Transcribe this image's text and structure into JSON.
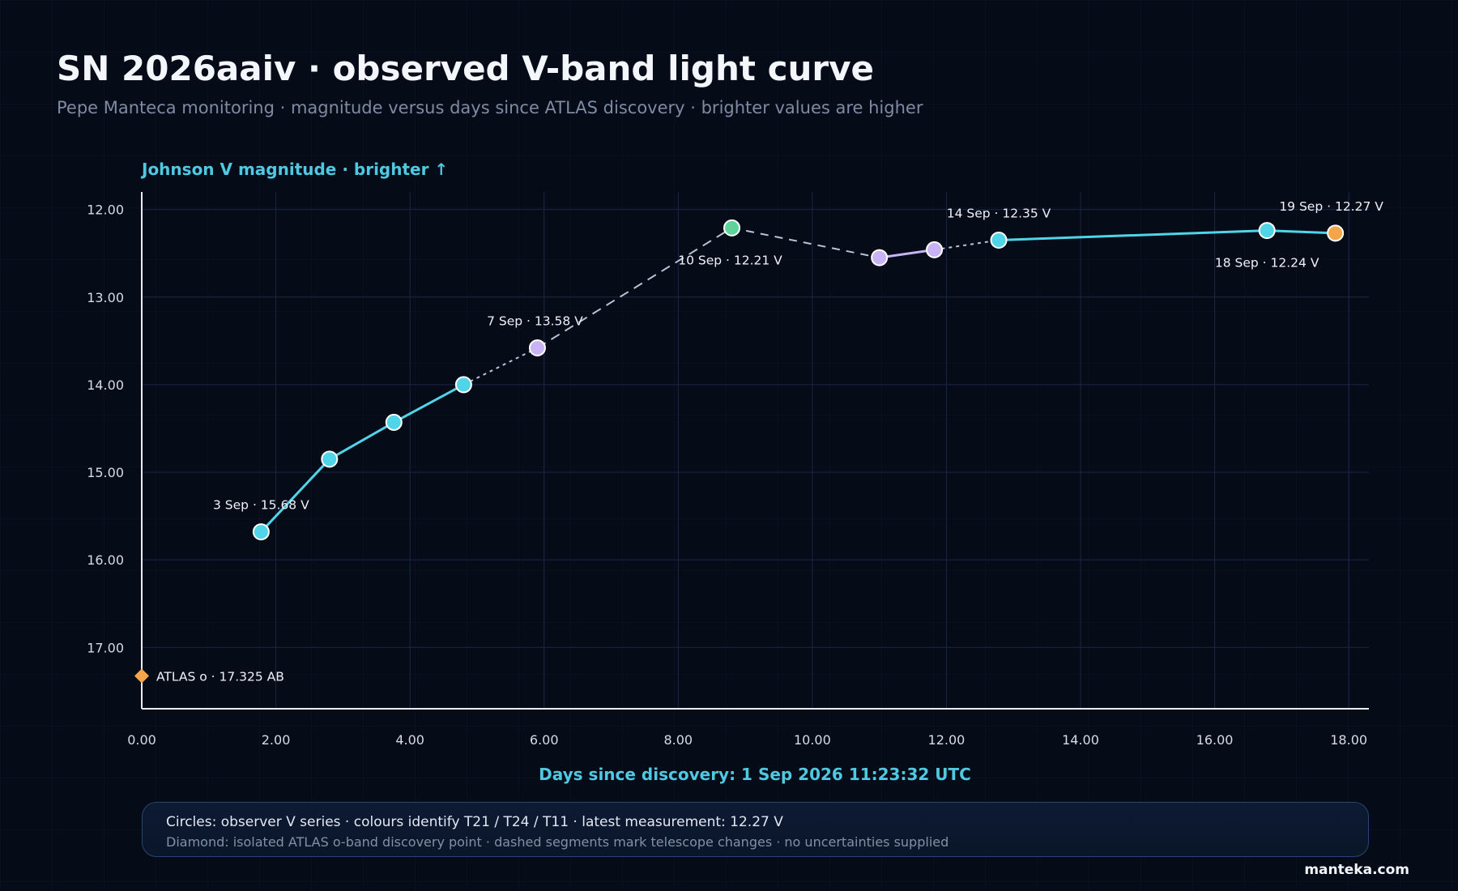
{
  "header": {
    "title": "SN 2026aaiv · observed V-band light curve",
    "subtitle": "Pepe Manteca monitoring · magnitude versus days since ATLAS discovery · brighter values are higher"
  },
  "chart_data": {
    "type": "scatter",
    "xlabel": "Days since discovery: 1 Sep 2026 11:23:32 UTC",
    "ylabel": "Johnson V magnitude · brighter ↑",
    "xlim": [
      0,
      18.3
    ],
    "ylim": [
      17.7,
      11.8
    ],
    "y_inverted": true,
    "grid": true,
    "x_ticks": [
      "0.00",
      "2.00",
      "4.00",
      "6.00",
      "8.00",
      "10.00",
      "12.00",
      "14.00",
      "16.00",
      "18.00"
    ],
    "y_ticks": [
      "12.00",
      "13.00",
      "14.00",
      "15.00",
      "16.00",
      "17.00"
    ],
    "colors": {
      "T21": "#4fd4e8",
      "T24": "#c8b4f5",
      "T11": "#5fd49a",
      "latest": "#f5a64a",
      "atlas": "#f5a64a"
    },
    "series": [
      {
        "name": "observer V series",
        "points": [
          {
            "x": 1.78,
            "y": 15.68,
            "telescope": "T21"
          },
          {
            "x": 2.8,
            "y": 14.85,
            "telescope": "T21"
          },
          {
            "x": 3.76,
            "y": 14.43,
            "telescope": "T21"
          },
          {
            "x": 4.8,
            "y": 14.0,
            "telescope": "T21"
          },
          {
            "x": 5.9,
            "y": 13.58,
            "telescope": "T24"
          },
          {
            "x": 8.8,
            "y": 12.21,
            "telescope": "T11"
          },
          {
            "x": 11.0,
            "y": 12.55,
            "telescope": "T24"
          },
          {
            "x": 11.82,
            "y": 12.46,
            "telescope": "T24"
          },
          {
            "x": 12.78,
            "y": 12.35,
            "telescope": "T21"
          },
          {
            "x": 16.78,
            "y": 12.24,
            "telescope": "T21"
          },
          {
            "x": 17.8,
            "y": 12.27,
            "telescope": "latest"
          }
        ]
      },
      {
        "name": "ATLAS o",
        "points": [
          {
            "x": 0.0,
            "y": 17.325
          }
        ]
      }
    ],
    "annotations": [
      {
        "text": "3 Sep · 15.68 V",
        "x": 1.78,
        "y": 15.68,
        "pos": "above"
      },
      {
        "text": "7 Sep · 13.58 V",
        "x": 5.9,
        "y": 13.58,
        "pos": "above-left"
      },
      {
        "text": "10 Sep · 12.21 V",
        "x": 8.8,
        "y": 12.21,
        "pos": "below"
      },
      {
        "text": "14 Sep · 12.35 V",
        "x": 12.78,
        "y": 12.35,
        "pos": "above"
      },
      {
        "text": "18 Sep · 12.24 V",
        "x": 16.78,
        "y": 12.24,
        "pos": "below"
      },
      {
        "text": "19 Sep · 12.27 V",
        "x": 17.8,
        "y": 12.27,
        "pos": "above",
        "color": "#f5a64a"
      },
      {
        "text": "ATLAS o · 17.325 AB",
        "x": 0.0,
        "y": 17.325,
        "pos": "right",
        "color": "#f5a64a"
      }
    ]
  },
  "legend": {
    "line1": "Circles: observer V series · colours identify T21 / T24 / T11 · latest measurement: 12.27 V",
    "line2": "Diamond: isolated ATLAS o-band discovery point · dashed segments mark telescope changes · no uncertainties supplied"
  },
  "footer": {
    "brand": "manteka.com"
  }
}
